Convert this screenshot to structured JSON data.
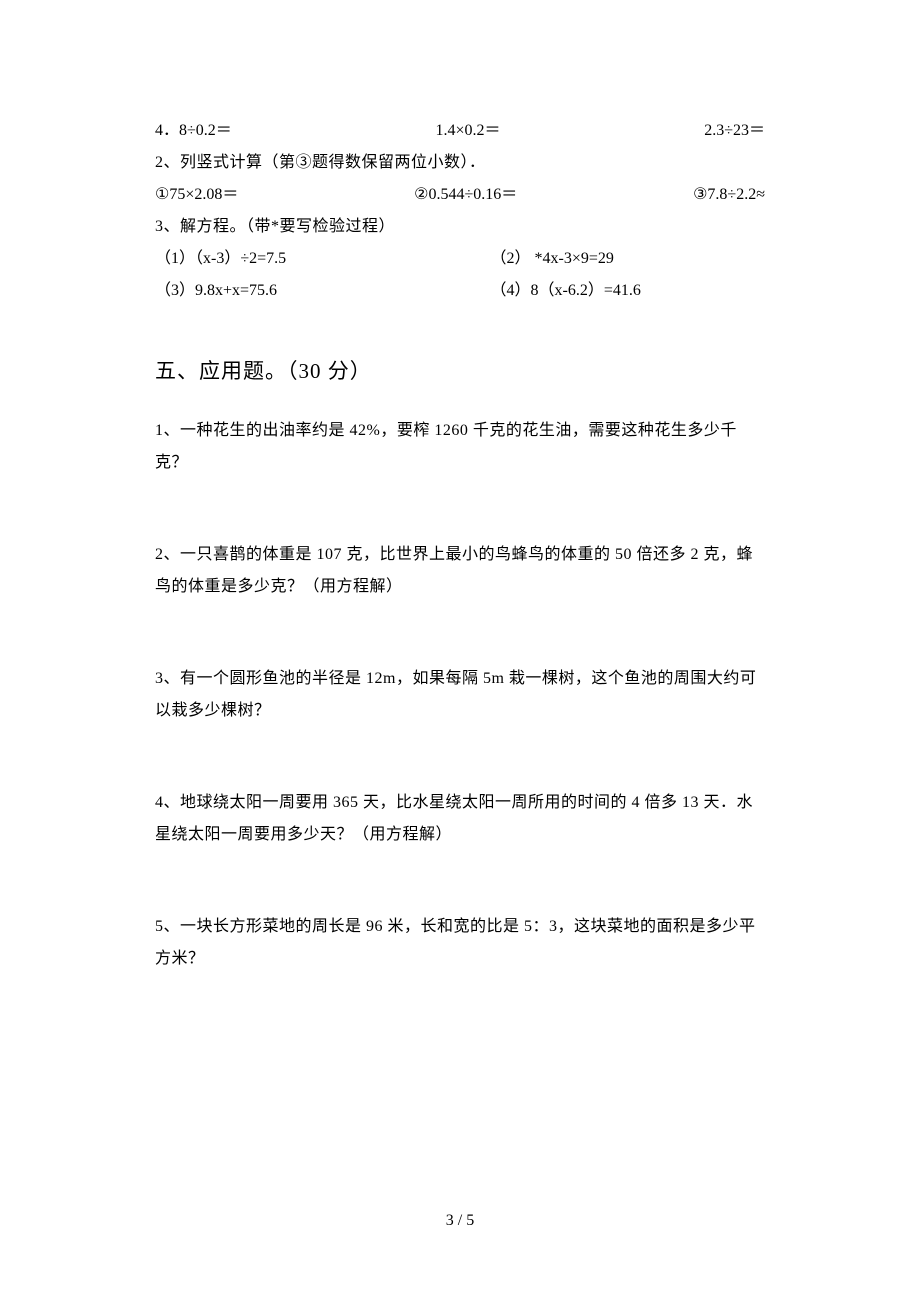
{
  "calc_row1": {
    "a": "4．8÷0.2＝",
    "b": "1.4×0.2＝",
    "c": "2.3÷23＝"
  },
  "line2": "2、列竖式计算（第③题得数保留两位小数）．",
  "calc_row2": {
    "a": "①75×2.08＝",
    "b": "②0.544÷0.16＝",
    "c": "③7.8÷2.2≈"
  },
  "line3": "3、解方程。（带*要写检验过程）",
  "eq1": {
    "left": "（1）（x-3）÷2=7.5",
    "right": "（2） *4x-3×9=29"
  },
  "eq2": {
    "left": "（3）9.8x+x=75.6",
    "right": "（4）8（x-6.2）=41.6"
  },
  "section5_title": "五、应用题。（30 分）",
  "q1": "1、一种花生的出油率约是 42%，要榨 1260 千克的花生油，需要这种花生多少千克？",
  "q2": "2、一只喜鹊的体重是 107 克，比世界上最小的鸟蜂鸟的体重的 50 倍还多 2 克，蜂鸟的体重是多少克？（用方程解）",
  "q3": "3、有一个圆形鱼池的半径是 12m，如果每隔 5m 栽一棵树，这个鱼池的周围大约可以栽多少棵树？",
  "q4": "4、地球绕太阳一周要用 365 天，比水星绕太阳一周所用的时间的 4 倍多 13 天．水星绕太阳一周要用多少天？（用方程解）",
  "q5": "5、一块长方形菜地的周长是 96 米，长和宽的比是 5：3，这块菜地的面积是多少平方米？",
  "page_number": "3 / 5"
}
